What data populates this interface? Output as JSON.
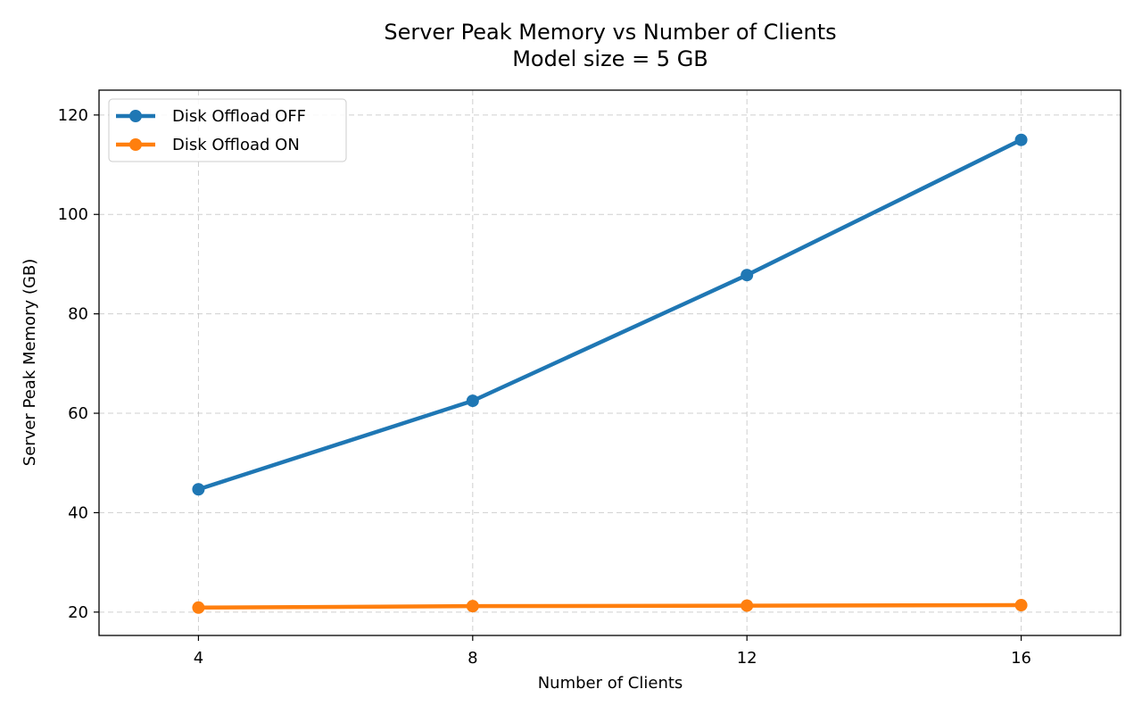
{
  "chart_data": {
    "type": "line",
    "title": "Server Peak Memory vs Number of Clients",
    "subtitle": "Model size = 5 GB",
    "xlabel": "Number of Clients",
    "ylabel": "Server Peak Memory (GB)",
    "x": [
      4,
      8,
      12,
      16
    ],
    "xticks": [
      4,
      8,
      12,
      16
    ],
    "yticks": [
      20,
      40,
      60,
      80,
      100,
      120
    ],
    "xlim": [
      2.55,
      17.45
    ],
    "ylim": [
      15.3,
      125
    ],
    "grid": true,
    "legend_position": "top-left",
    "series": [
      {
        "name": "Disk Offload OFF",
        "color": "#1f77b4",
        "values": [
          44.7,
          62.5,
          87.8,
          115.0
        ]
      },
      {
        "name": "Disk Offload ON",
        "color": "#ff7f0e",
        "values": [
          20.9,
          21.2,
          21.3,
          21.4
        ]
      }
    ]
  }
}
